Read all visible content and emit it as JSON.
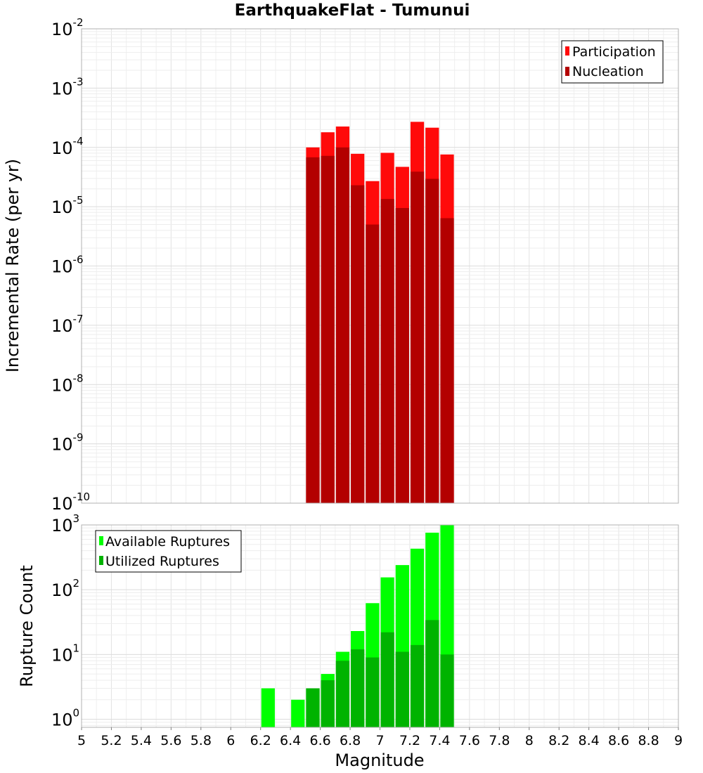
{
  "chart_data": [
    {
      "type": "bar",
      "title": "EarthquakeFlat - Tumunui",
      "ylabel": "Incremental Rate (per yr)",
      "y_scale": "log",
      "ylim": [
        1e-10,
        0.01
      ],
      "xlim": [
        5,
        9
      ],
      "bar_width": 0.1,
      "legend_position": "top-right",
      "grid": true,
      "y_ticks": [
        {
          "base": "10",
          "exp": "-10",
          "value": 1e-10
        },
        {
          "base": "10",
          "exp": "-9",
          "value": 1e-09
        },
        {
          "base": "10",
          "exp": "-8",
          "value": 1e-08
        },
        {
          "base": "10",
          "exp": "-7",
          "value": 1e-07
        },
        {
          "base": "10",
          "exp": "-6",
          "value": 1e-06
        },
        {
          "base": "10",
          "exp": "-5",
          "value": 1e-05
        },
        {
          "base": "10",
          "exp": "-4",
          "value": 0.0001
        },
        {
          "base": "10",
          "exp": "-3",
          "value": 0.001
        },
        {
          "base": "10",
          "exp": "-2",
          "value": 0.01
        }
      ],
      "x": [
        6.55,
        6.65,
        6.75,
        6.85,
        6.95,
        7.05,
        7.15,
        7.25,
        7.35,
        7.45
      ],
      "series": [
        {
          "name": "Participation",
          "color": "#ff0a0a",
          "values": [
            0.0001,
            0.00018,
            0.000225,
            7.8e-05,
            2.7e-05,
            8.1e-05,
            4.7e-05,
            0.00027,
            0.000215,
            7.6e-05
          ]
        },
        {
          "name": "Nucleation",
          "color": "#b30000",
          "values": [
            6.8e-05,
            7.2e-05,
            0.0001,
            2.3e-05,
            5e-06,
            1.35e-05,
            9.5e-06,
            3.9e-05,
            2.95e-05,
            6.4e-06
          ]
        }
      ]
    },
    {
      "type": "bar",
      "ylabel": "Rupture Count",
      "xlabel": "Magnitude",
      "y_scale": "log",
      "ylim": [
        0.75,
        1000
      ],
      "xlim": [
        5,
        9
      ],
      "bar_width": 0.1,
      "legend_position": "top-left",
      "grid": true,
      "y_ticks": [
        {
          "base": "10",
          "exp": "0",
          "value": 1
        },
        {
          "base": "10",
          "exp": "1",
          "value": 10
        },
        {
          "base": "10",
          "exp": "2",
          "value": 100
        },
        {
          "base": "10",
          "exp": "3",
          "value": 1000
        }
      ],
      "x_ticks": [
        "5",
        "5.2",
        "5.4",
        "5.6",
        "5.8",
        "6",
        "6.2",
        "6.4",
        "6.6",
        "6.8",
        "7",
        "7.2",
        "7.4",
        "7.6",
        "7.8",
        "8",
        "8.2",
        "8.4",
        "8.6",
        "8.8",
        "9"
      ],
      "x": [
        6.25,
        6.45,
        6.55,
        6.65,
        6.75,
        6.85,
        6.95,
        7.05,
        7.15,
        7.25,
        7.35,
        7.45
      ],
      "series": [
        {
          "name": "Available Ruptures",
          "color": "#00ff00",
          "values": [
            3,
            2,
            3,
            5,
            11,
            23,
            62,
            155,
            240,
            430,
            760,
            1000
          ]
        },
        {
          "name": "Utilized Ruptures",
          "color": "#00b300",
          "values": [
            0,
            0,
            3,
            4,
            8,
            12,
            9,
            22,
            11,
            14,
            34,
            10
          ]
        }
      ]
    }
  ]
}
